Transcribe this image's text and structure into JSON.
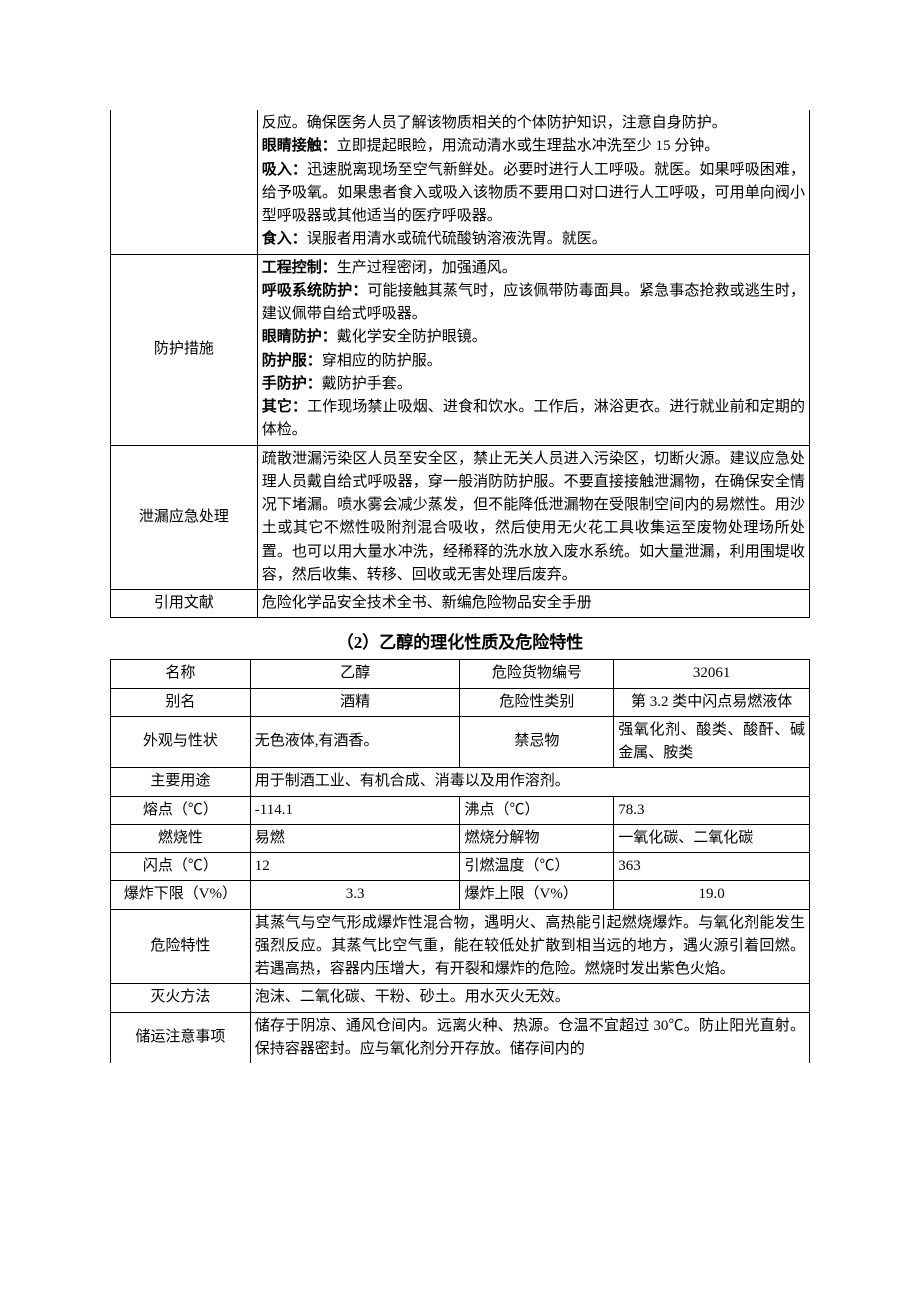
{
  "table1": {
    "rows": [
      {
        "label": "",
        "content_segments": [
          {
            "t": "反应。确保医务人员了解该物质相关的个体防护知识，注意自身防护。",
            "b": false,
            "br": true
          },
          {
            "t": "眼睛接触：",
            "b": true
          },
          {
            "t": "立即提起眼睑，用流动清水或生理盐水冲洗至少 15 分钟。",
            "b": false,
            "br": true
          },
          {
            "t": "吸入：",
            "b": true
          },
          {
            "t": "迅速脱离现场至空气新鲜处。必要时进行人工呼吸。就医。如果呼吸困难，给予吸氧。如果患者食入或吸入该物质不要用口对口进行人工呼吸，可用单向阀小型呼吸器或其他适当的医疗呼吸器。",
            "b": false,
            "br": true
          },
          {
            "t": "食入：",
            "b": true
          },
          {
            "t": "误服者用清水或硫代硫酸钠溶液洗胃。就医。",
            "b": false
          }
        ]
      },
      {
        "label": "防护措施",
        "content_segments": [
          {
            "t": "工程控制：",
            "b": true
          },
          {
            "t": "生产过程密闭，加强通风。",
            "b": false,
            "br": true
          },
          {
            "t": "呼吸系统防护：",
            "b": true
          },
          {
            "t": "可能接触其蒸气时，应该佩带防毒面具。紧急事态抢救或逃生时，建议佩带自给式呼吸器。",
            "b": false,
            "br": true
          },
          {
            "t": "眼睛防护：",
            "b": true
          },
          {
            "t": "戴化学安全防护眼镜。",
            "b": false,
            "br": true
          },
          {
            "t": "防护服：",
            "b": true
          },
          {
            "t": "穿相应的防护服。",
            "b": false,
            "br": true
          },
          {
            "t": "手防护：",
            "b": true
          },
          {
            "t": "戴防护手套。",
            "b": false,
            "br": true
          },
          {
            "t": "其它：",
            "b": true
          },
          {
            "t": "工作现场禁止吸烟、进食和饮水。工作后，淋浴更衣。进行就业前和定期的体检。",
            "b": false
          }
        ]
      },
      {
        "label": "泄漏应急处理",
        "content_segments": [
          {
            "t": "疏散泄漏污染区人员至安全区，禁止无关人员进入污染区，切断火源。建议应急处理人员戴自给式呼吸器，穿一般消防防护服。不要直接接触泄漏物，在确保安全情况下堵漏。喷水雾会减少蒸发，但不能降低泄漏物在受限制空间内的易燃性。用沙土或其它不燃性吸附剂混合吸收，然后使用无火花工具收集运至废物处理场所处置。也可以用大量水冲洗，经稀释的洗水放入废水系统。如大量泄漏，利用围堤收容，然后收集、转移、回收或无害处理后废弃。",
            "b": false
          }
        ]
      },
      {
        "label": "引用文献",
        "content_segments": [
          {
            "t": "危险化学品安全技术全书、新编危险物品安全手册",
            "b": false
          }
        ]
      }
    ]
  },
  "section2_title": "（2）乙醇的理化性质及危险特性",
  "table2": {
    "r1": {
      "c1": "名称",
      "c2": "乙醇",
      "c3": "危险货物编号",
      "c4": "32061"
    },
    "r2": {
      "c1": "别名",
      "c2": "酒精",
      "c3": "危险性类别",
      "c4": "第 3.2 类中闪点易燃液体"
    },
    "r3": {
      "c1": "外观与性状",
      "c2": "无色液体,有酒香。",
      "c3": "禁忌物",
      "c4": "强氧化剂、酸类、酸酐、碱金属、胺类"
    },
    "r4": {
      "c1": "主要用途",
      "c234": "用于制酒工业、有机合成、消毒以及用作溶剂。"
    },
    "r5": {
      "c1": "熔点（℃）",
      "c2": "-114.1",
      "c3": "沸点（℃）",
      "c4": "78.3"
    },
    "r6": {
      "c1": "燃烧性",
      "c2": "易燃",
      "c3": "燃烧分解物",
      "c4": "一氧化碳、二氧化碳"
    },
    "r7": {
      "c1": "闪点（℃）",
      "c2": "12",
      "c3": "引燃温度（℃）",
      "c4": "363"
    },
    "r8": {
      "c1": "爆炸下限（V%）",
      "c2": "3.3",
      "c3": "爆炸上限（V%）",
      "c4": "19.0"
    },
    "r9": {
      "c1": "危险特性",
      "c234": "其蒸气与空气形成爆炸性混合物，遇明火、高热能引起燃烧爆炸。与氧化剂能发生强烈反应。其蒸气比空气重，能在较低处扩散到相当远的地方，遇火源引着回燃。若遇高热，容器内压增大，有开裂和爆炸的危险。燃烧时发出紫色火焰。"
    },
    "r10": {
      "c1": "灭火方法",
      "c234": "泡沫、二氧化碳、干粉、砂土。用水灭火无效。"
    },
    "r11": {
      "c1": "储运注意事项",
      "c234": "储存于阴凉、通风仓间内。远离火种、热源。仓温不宜超过 30℃。防止阳光直射。保持容器密封。应与氧化剂分开存放。储存间内的"
    }
  },
  "colors": {
    "border": "#000000",
    "bg": "#ffffff",
    "text": "#000000"
  },
  "fontsize": 15,
  "lineheight": 1.55
}
